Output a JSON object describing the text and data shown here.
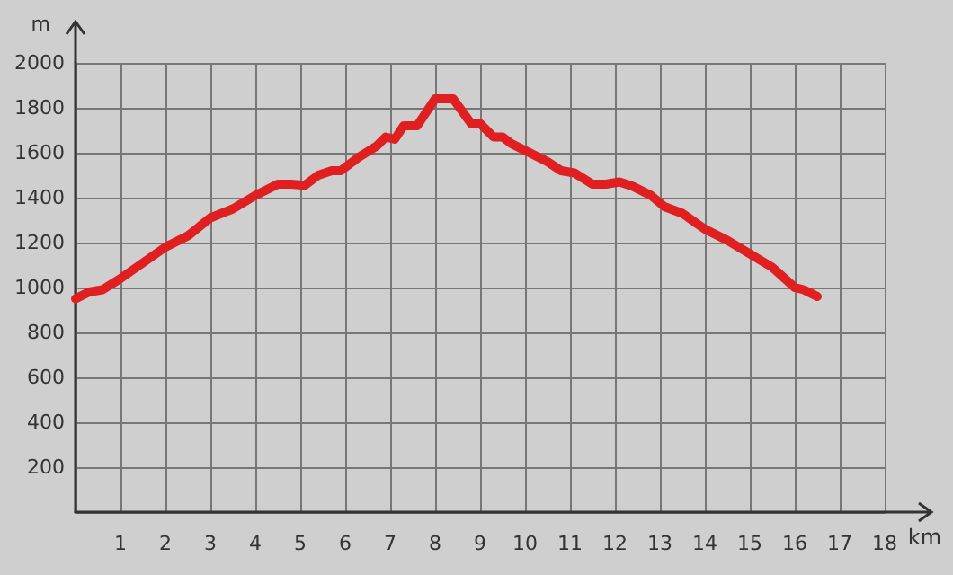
{
  "chart_data": {
    "type": "line",
    "xlabel": "km",
    "ylabel": "m",
    "xlim": [
      0,
      18
    ],
    "xticks": [
      {
        "value": 0,
        "label": null
      },
      1,
      2,
      3,
      4,
      5,
      6,
      7,
      8,
      9,
      10,
      11,
      12,
      13,
      14,
      15,
      16,
      17,
      18
    ],
    "ylim": [
      0,
      2000
    ],
    "yticks": [
      {
        "value": 0,
        "label": null
      },
      200,
      400,
      600,
      800,
      1000,
      1200,
      1400,
      1600,
      1800,
      2000
    ],
    "grid": true,
    "marker": "none",
    "line_style": "solid",
    "series": [
      {
        "color": "#e02020",
        "x": [
          0,
          0.3,
          0.6,
          1,
          1.5,
          2,
          2.5,
          3,
          3.5,
          4,
          4.5,
          4.8,
          5.1,
          5.4,
          5.7,
          5.9,
          6.3,
          6.7,
          6.9,
          7.1,
          7.3,
          7.6,
          8.0,
          8.4,
          8.8,
          9.0,
          9.3,
          9.5,
          9.7,
          10,
          10.5,
          10.8,
          11.1,
          11.5,
          11.8,
          12.1,
          12.4,
          12.8,
          13.1,
          13.5,
          14,
          14.5,
          15,
          15.5,
          16,
          16.2,
          16.5
        ],
        "values": [
          950,
          980,
          990,
          1040,
          1110,
          1180,
          1230,
          1310,
          1350,
          1410,
          1460,
          1460,
          1455,
          1500,
          1520,
          1520,
          1580,
          1630,
          1670,
          1660,
          1720,
          1720,
          1840,
          1840,
          1730,
          1730,
          1670,
          1670,
          1640,
          1610,
          1560,
          1520,
          1510,
          1460,
          1460,
          1470,
          1450,
          1410,
          1360,
          1330,
          1260,
          1210,
          1150,
          1090,
          1000,
          990,
          960
        ]
      }
    ]
  }
}
